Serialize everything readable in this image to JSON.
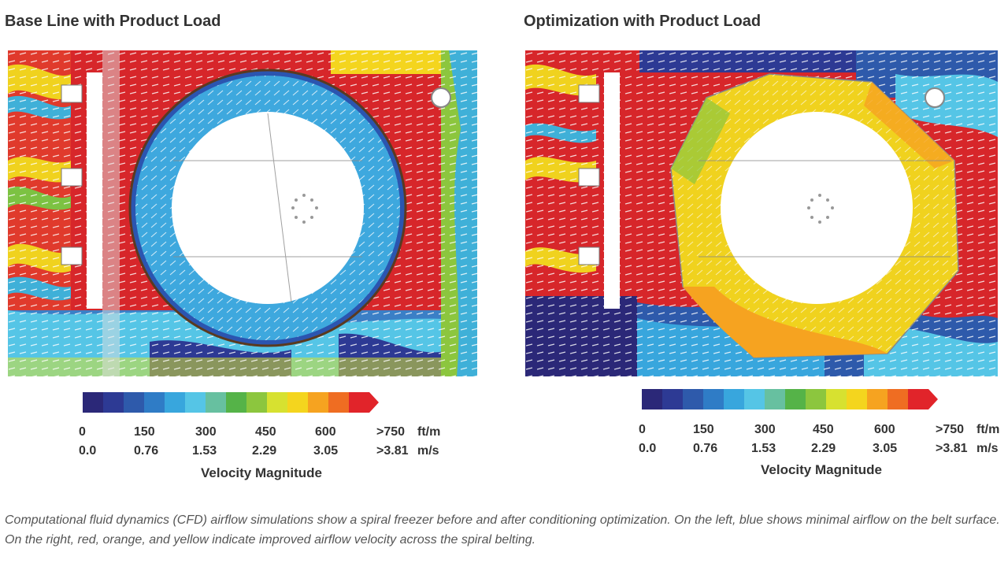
{
  "panels": [
    {
      "title": "Base Line with Product Load"
    },
    {
      "title": "Optimization with Product Load"
    }
  ],
  "legend": {
    "colors": [
      "#2b2878",
      "#2d3a94",
      "#2e5aab",
      "#2f7cc6",
      "#38a6dd",
      "#55c5e6",
      "#67c0a0",
      "#55b348",
      "#8cc63e",
      "#d7e130",
      "#f4d51e",
      "#f6a320",
      "#ef6d22",
      "#e1242a"
    ],
    "ticks_ftm": [
      "0",
      "150",
      "300",
      "450",
      "600",
      ">750"
    ],
    "ticks_ms": [
      "0.0",
      "0.76",
      "1.53",
      "2.29",
      "3.05",
      ">3.81"
    ],
    "unit_ftm": "ft/m",
    "unit_ms": "m/s",
    "title": "Velocity Magnitude"
  },
  "caption": "Computational fluid dynamics (CFD) airflow simulations show a spiral freezer before and after conditioning optimization. On the left, blue shows minimal airflow on the belt surface. On the right, red, orange, and yellow indicate improved airflow velocity across the spiral belting."
}
